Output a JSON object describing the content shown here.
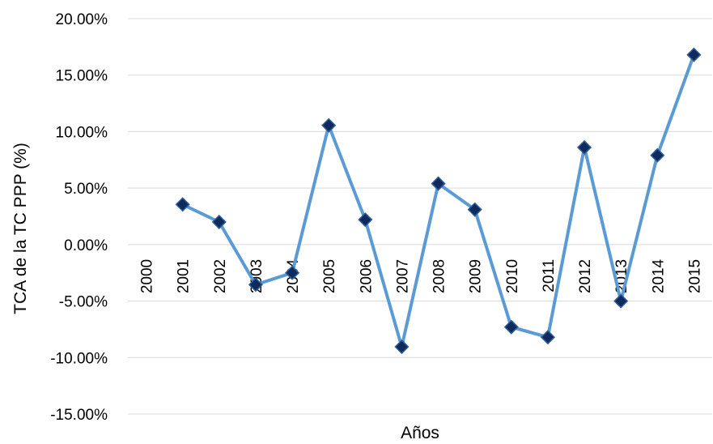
{
  "chart_data": {
    "type": "line",
    "title": "",
    "xlabel": "Años",
    "ylabel": "TCA de la TC PPP (%)",
    "categories": [
      "2000",
      "2001",
      "2002",
      "2003",
      "2004",
      "2005",
      "2006",
      "2007",
      "2008",
      "2009",
      "2010",
      "2011",
      "2012",
      "2013",
      "2014",
      "2015"
    ],
    "series": [
      {
        "values": [
          null,
          3.55,
          2.0,
          -3.55,
          -2.5,
          10.55,
          2.2,
          -9.05,
          5.4,
          3.1,
          -7.3,
          -8.2,
          8.6,
          -5.0,
          7.9,
          16.8
        ]
      }
    ],
    "y_ticks": [
      "20.00%",
      "15.00%",
      "10.00%",
      "5.00%",
      "0.00%",
      "-5.00%",
      "-10.00%",
      "-15.00%"
    ],
    "ylim": [
      -15,
      20
    ],
    "grid": true,
    "legend": "none",
    "colors": {
      "line": "#5b9bd5",
      "marker": "#0f2a5c",
      "marker_edge": "#2e5c9a"
    }
  }
}
